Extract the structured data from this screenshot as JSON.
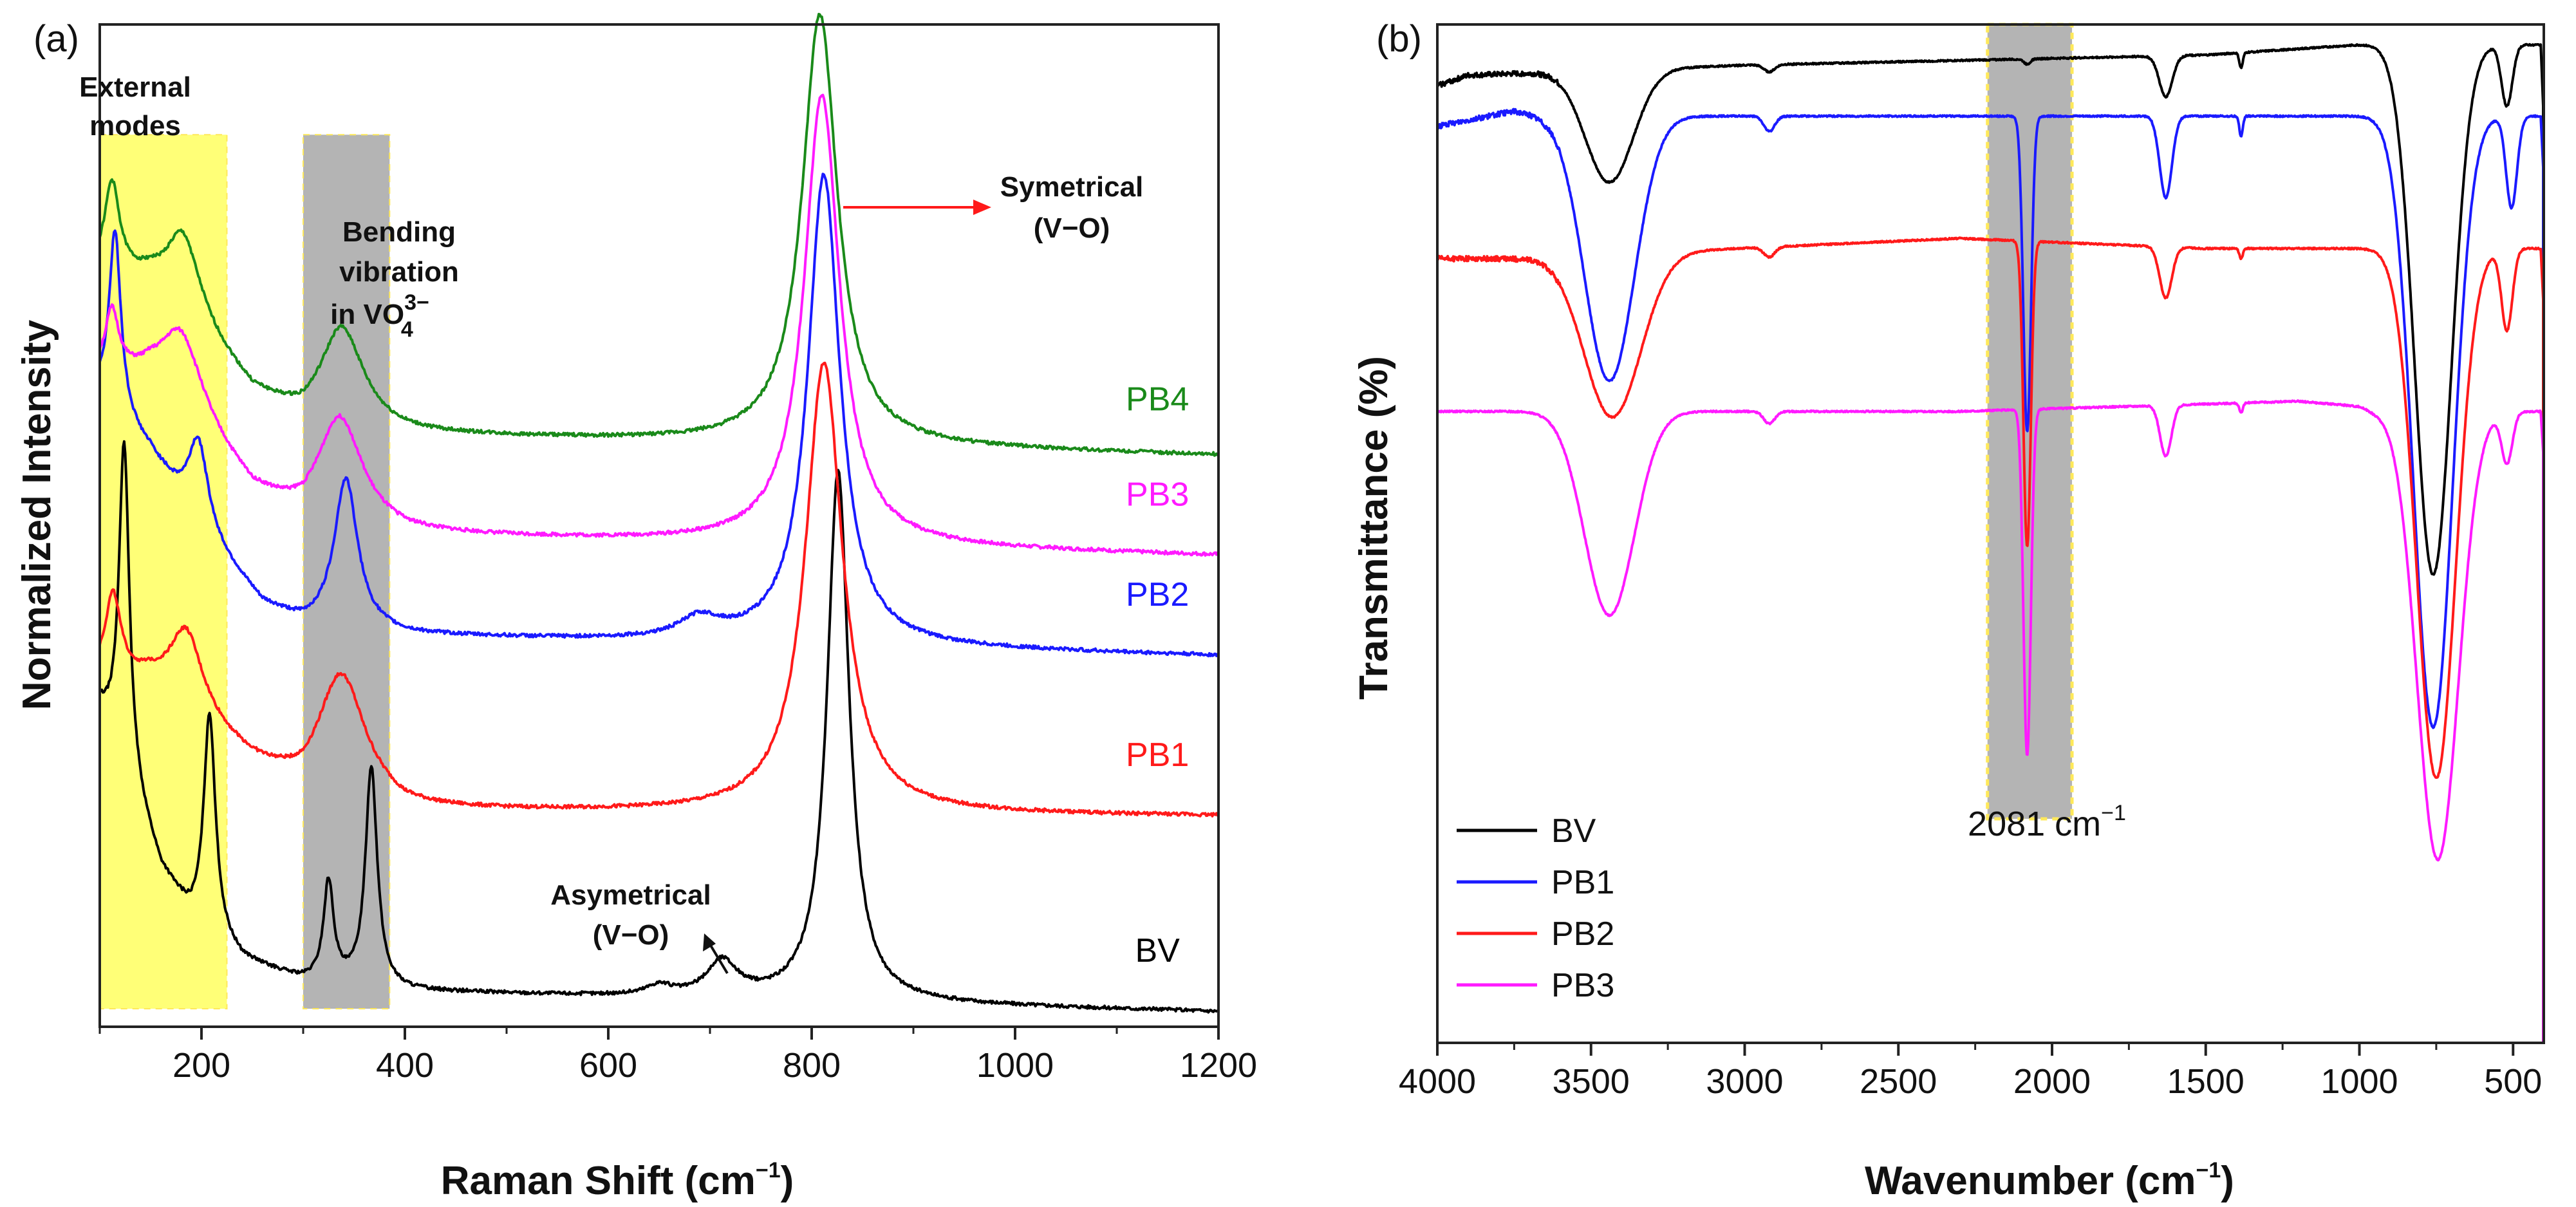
{
  "panels": {
    "a": {
      "label": "(a)"
    },
    "b": {
      "label": "(b)"
    }
  },
  "chart_data": [
    {
      "id": "a",
      "type": "line",
      "title": "",
      "xlabel": "Raman Shift (cm",
      "xlabel_sup": "−1",
      "xlabel_close": ")",
      "ylabel": "Normalized Intensity",
      "xlim": [
        100,
        1200
      ],
      "x_ticks": [
        200,
        400,
        600,
        800,
        1000,
        1200
      ],
      "x_tick_labels": [
        "200",
        "400",
        "600",
        "800",
        "1000",
        "1200"
      ],
      "x_minor_ticks": [
        100,
        300,
        500,
        700,
        900,
        1100
      ],
      "ylim": [
        0,
        100
      ],
      "y_ticks_shown": false,
      "shaded_regions": [
        {
          "name": "external-modes",
          "x": [
            100,
            225
          ],
          "color": "#ffff77"
        },
        {
          "name": "bending-region",
          "x": [
            300,
            385
          ],
          "color": "#b4b4b4"
        }
      ],
      "annotations": {
        "external": [
          "External",
          "modes"
        ],
        "bending": [
          "Bending",
          "vibration",
          "in VO"
        ],
        "bending_sup": "3−",
        "bending_sub": "4",
        "symmetric": [
          "Symetrical",
          "(V−O)"
        ],
        "asymmetric": [
          "Asymetrical",
          "(V−O)"
        ]
      },
      "series": [
        {
          "name": "BV",
          "color": "#000000",
          "baseline": 1.5,
          "bg": [
            [
              100,
              30
            ],
            [
              120,
              26
            ],
            [
              160,
              14
            ],
            [
              190,
              9
            ],
            [
              240,
              5
            ],
            [
              300,
              3
            ],
            [
              400,
              2
            ],
            [
              1200,
              0
            ]
          ],
          "peaks": [
            [
              124,
              32,
              6
            ],
            [
              208,
              22,
              7
            ],
            [
              325,
              10,
              6
            ],
            [
              367,
              22,
              7
            ],
            [
              650,
              1,
              15
            ],
            [
              712,
              3.5,
              18
            ],
            [
              826,
              53,
              13
            ]
          ]
        },
        {
          "name": "PB1",
          "color": "#ff1a1a",
          "baseline": 21,
          "bg": [
            [
              100,
              14
            ],
            [
              150,
              13
            ],
            [
              200,
              9
            ],
            [
              250,
              5
            ],
            [
              300,
              2
            ],
            [
              350,
              2
            ],
            [
              400,
              0.5
            ],
            [
              1200,
              0
            ]
          ],
          "peaks": [
            [
              113,
              8,
              9
            ],
            [
              185,
              8,
              20
            ],
            [
              337,
              12,
              28
            ],
            [
              812,
              45,
              22
            ]
          ]
        },
        {
          "name": "PB2",
          "color": "#1a1aff",
          "baseline": 37,
          "bg": [
            [
              100,
              26
            ],
            [
              150,
              20
            ],
            [
              200,
              12
            ],
            [
              260,
              5
            ],
            [
              300,
              3
            ],
            [
              400,
              2
            ],
            [
              1200,
              0
            ]
          ],
          "peaks": [
            [
              115,
              18,
              7
            ],
            [
              197,
              9,
              12
            ],
            [
              342,
              15,
              14
            ],
            [
              690,
              2,
              25
            ],
            [
              812,
              47,
              19
            ]
          ]
        },
        {
          "name": "PB3",
          "color": "#ff1aff",
          "baseline": 47,
          "bg": [
            [
              100,
              18
            ],
            [
              150,
              17
            ],
            [
              200,
              12
            ],
            [
              250,
              6
            ],
            [
              300,
              3
            ],
            [
              400,
              2
            ],
            [
              1200,
              0
            ]
          ],
          "peaks": [
            [
              112,
              6,
              8
            ],
            [
              180,
              8,
              25
            ],
            [
              336,
              11,
              27
            ],
            [
              810,
              45,
              21
            ]
          ]
        },
        {
          "name": "PB4",
          "color": "#1a8a1a",
          "baseline": 57,
          "bg": [
            [
              100,
              18
            ],
            [
              150,
              17
            ],
            [
              200,
              12
            ],
            [
              250,
              6
            ],
            [
              300,
              3
            ],
            [
              400,
              2
            ],
            [
              1200,
              0
            ]
          ],
          "peaks": [
            [
              112,
              9,
              9
            ],
            [
              182,
              8,
              20
            ],
            [
              338,
              10,
              26
            ],
            [
              808,
              43,
              21
            ]
          ]
        }
      ],
      "series_labels": [
        {
          "name": "BV",
          "x": 1140,
          "y": 6.5
        },
        {
          "name": "PB1",
          "x": 1140,
          "y": 26
        },
        {
          "name": "PB2",
          "x": 1140,
          "y": 42
        },
        {
          "name": "PB3",
          "x": 1140,
          "y": 52
        },
        {
          "name": "PB4",
          "x": 1140,
          "y": 61.5
        }
      ]
    },
    {
      "id": "b",
      "type": "line",
      "title": "",
      "xlabel": "Wavenumber (cm",
      "xlabel_sup": "−1",
      "xlabel_close": ")",
      "ylabel": "Transmittance (%)",
      "xlim": [
        4000,
        400
      ],
      "x_reversed": true,
      "x_ticks": [
        4000,
        3500,
        3000,
        2500,
        2000,
        1500,
        1000,
        500
      ],
      "x_tick_labels": [
        "4000",
        "3500",
        "3000",
        "2500",
        "2000",
        "1500",
        "1000",
        "500"
      ],
      "x_minor_ticks": [
        3750,
        3250,
        2750,
        2250,
        1750,
        1250,
        750
      ],
      "ylim": [
        0,
        100
      ],
      "y_ticks_shown": false,
      "shaded_regions": [
        {
          "name": "cn-band",
          "x": [
            2210,
            1935
          ],
          "color": "#b4b4b4"
        }
      ],
      "annotations": {
        "band_label": "2081 cm",
        "band_label_sup": "−1"
      },
      "legend": {
        "position": "bottom-left",
        "entries": [
          "BV",
          "PB1",
          "PB2",
          "PB3"
        ]
      },
      "series": [
        {
          "name": "BV",
          "color": "#000000",
          "top": 96,
          "bands": [
            [
              3440,
              11,
              110
            ],
            [
              2920,
              0.7,
              25
            ],
            [
              1630,
              4,
              30
            ],
            [
              1385,
              1.5,
              8
            ],
            [
              2081,
              0.5,
              15
            ],
            [
              760,
              52,
              85
            ],
            [
              520,
              6,
              25
            ]
          ],
          "rise": [
            [
              4000,
              -2
            ],
            [
              3900,
              -1
            ],
            [
              3000,
              0
            ],
            [
              1500,
              1
            ],
            [
              1000,
              2
            ],
            [
              950,
              2
            ]
          ]
        },
        {
          "name": "PB1",
          "color": "#1a1aff",
          "top": 90,
          "bands": [
            [
              3440,
              26,
              115
            ],
            [
              2920,
              1.5,
              25
            ],
            [
              2081,
              31,
              18
            ],
            [
              1630,
              8,
              28
            ],
            [
              1385,
              2,
              8
            ],
            [
              760,
              60,
              90
            ],
            [
              505,
              9,
              25
            ]
          ],
          "rise": [
            [
              4000,
              0
            ],
            [
              3750,
              1.5
            ],
            [
              3650,
              1
            ],
            [
              1000,
              1
            ],
            [
              950,
              1
            ]
          ]
        },
        {
          "name": "PB2",
          "color": "#ff1a1a",
          "top": 77,
          "bands": [
            [
              3430,
              16,
              130
            ],
            [
              2920,
              1,
              25
            ],
            [
              2081,
              30,
              17
            ],
            [
              1630,
              5,
              28
            ],
            [
              1385,
              1,
              8
            ],
            [
              750,
              52,
              90
            ],
            [
              520,
              8,
              25
            ]
          ],
          "rise": [
            [
              4000,
              0
            ],
            [
              3750,
              0
            ],
            [
              2300,
              2
            ],
            [
              1500,
              1
            ],
            [
              1000,
              1
            ],
            [
              950,
              1
            ]
          ]
        },
        {
          "name": "PB3",
          "color": "#ff1aff",
          "top": 62,
          "bands": [
            [
              3440,
              20,
              115
            ],
            [
              2920,
              1.2,
              25
            ],
            [
              2081,
              34,
              17
            ],
            [
              1630,
              5,
              26
            ],
            [
              1385,
              1,
              8
            ],
            [
              745,
              44,
              95
            ],
            [
              520,
              5,
              25
            ]
          ],
          "rise": [
            [
              4000,
              0
            ],
            [
              3700,
              0
            ],
            [
              2300,
              0
            ],
            [
              1200,
              1
            ],
            [
              1000,
              0.5
            ],
            [
              950,
              0
            ]
          ]
        }
      ]
    }
  ]
}
